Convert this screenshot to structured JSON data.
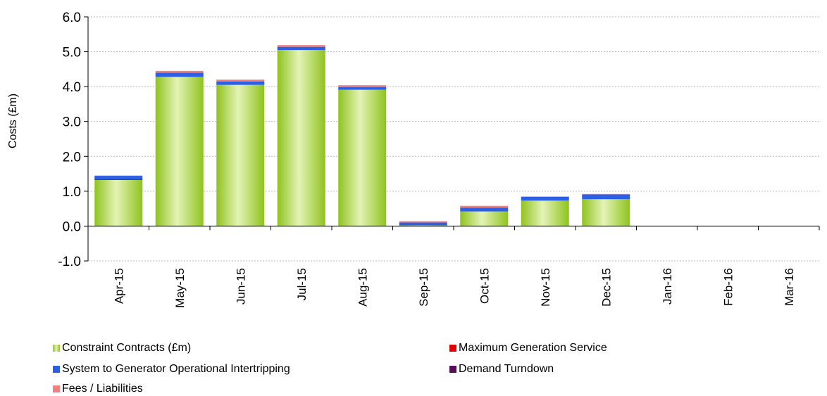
{
  "chart_data": {
    "type": "bar",
    "stacked": true,
    "ylabel": "Costs (£m)",
    "xlabel": "",
    "ylim": [
      -1.0,
      6.0
    ],
    "ytick_labels": [
      "-1.0",
      "0.0",
      "1.0",
      "2.0",
      "3.0",
      "4.0",
      "5.0",
      "6.0"
    ],
    "grid": true,
    "legend_position": "bottom",
    "categories": [
      "Apr-15",
      "May-15",
      "Jun-15",
      "Jul-15",
      "Aug-15",
      "Sep-15",
      "Oct-15",
      "Nov-15",
      "Dec-15",
      "Jan-16",
      "Feb-16",
      "Mar-16"
    ],
    "series": [
      {
        "name": "Constraint Contracts (£m)",
        "color": "#8fc31f",
        "values": [
          1.32,
          4.28,
          4.05,
          5.05,
          3.91,
          0.02,
          0.42,
          0.73,
          0.77,
          0,
          0,
          0
        ]
      },
      {
        "name": "Maximum Generation Service",
        "color": "#e00000",
        "values": [
          0.02,
          0,
          0,
          0,
          0,
          0,
          0,
          0,
          0,
          0,
          0,
          0
        ]
      },
      {
        "name": "System to Generator Operational Intertripping",
        "color": "#2a5fe6",
        "values": [
          0.1,
          0.12,
          0.1,
          0.09,
          0.08,
          0.08,
          0.11,
          0.11,
          0.14,
          0,
          0,
          0
        ]
      },
      {
        "name": "Demand Turndown",
        "color": "#5a0a5a",
        "values": [
          0,
          0,
          0,
          0,
          0,
          0,
          0,
          0,
          0,
          0,
          0,
          0
        ]
      },
      {
        "name": "Fees / Liabilities",
        "color": "#f08080",
        "values": [
          0.01,
          0.05,
          0.05,
          0.05,
          0.05,
          0.04,
          0.05,
          0.01,
          0.01,
          0,
          0,
          0
        ]
      }
    ]
  }
}
